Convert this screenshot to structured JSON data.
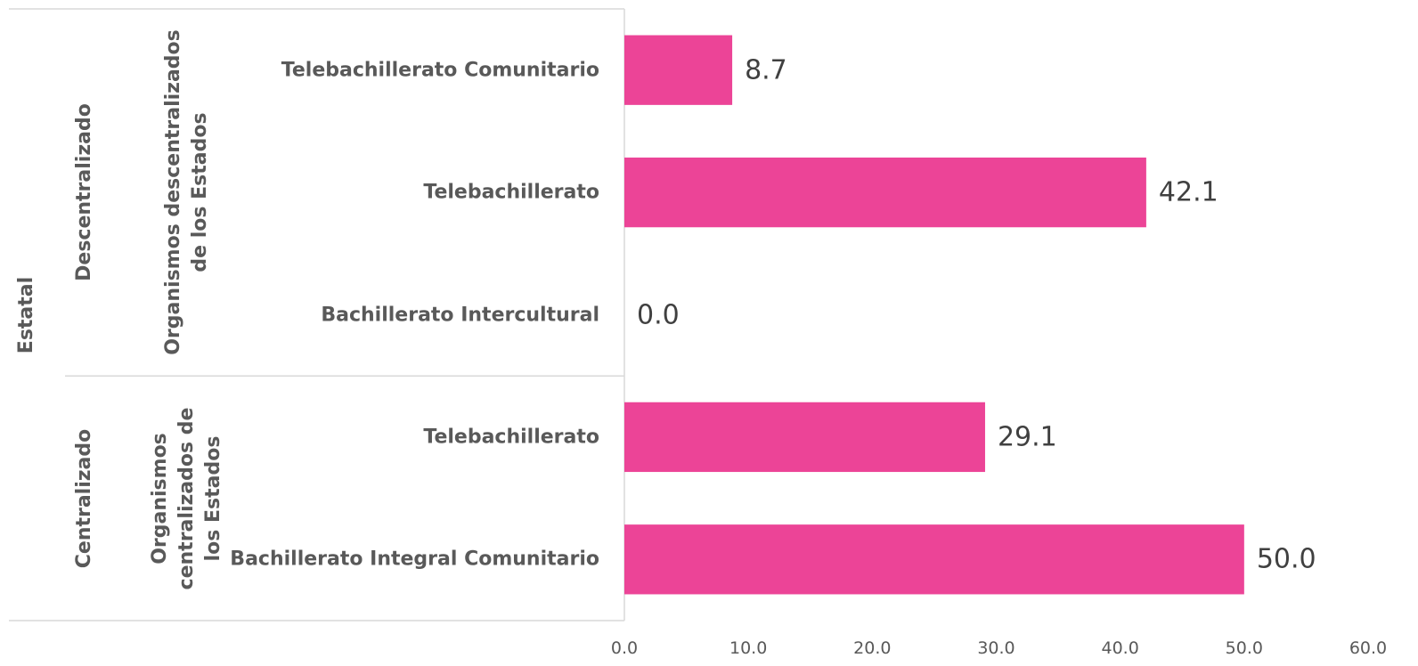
{
  "chart_data": {
    "type": "bar",
    "orientation": "horizontal",
    "categories": [
      "Telebachillerato Comunitario",
      "Telebachillerato",
      "Bachillerato Intercultural",
      "Telebachillerato",
      "Bachillerato Integral Comunitario"
    ],
    "values": [
      8.7,
      42.1,
      0.0,
      29.1,
      50.0
    ],
    "value_labels": [
      "8.7",
      "42.1",
      "0.0",
      "29.1",
      "50.0"
    ],
    "color": "#ec4497",
    "groups": [
      [
        {
          "label": "Estatal",
          "span": 5
        }
      ],
      [
        {
          "label": "Descentralizado",
          "span": 3
        },
        {
          "label": "Centralizado",
          "span": 2
        }
      ],
      [
        {
          "label": "Organismos descentralizados de los Estados",
          "span": 3
        },
        {
          "label": "Organismos centralizados de los Estados",
          "span": 2
        }
      ]
    ],
    "xlim": [
      0,
      60
    ],
    "xticks": [
      {
        "value": 0,
        "label": "0.0"
      },
      {
        "value": 10,
        "label": "10.0"
      },
      {
        "value": 20,
        "label": "20.0"
      },
      {
        "value": 30,
        "label": "30.0"
      },
      {
        "value": 40,
        "label": "40.0"
      },
      {
        "value": 50,
        "label": "50.0"
      },
      {
        "value": 60,
        "label": "60.0"
      }
    ],
    "grid": false
  }
}
